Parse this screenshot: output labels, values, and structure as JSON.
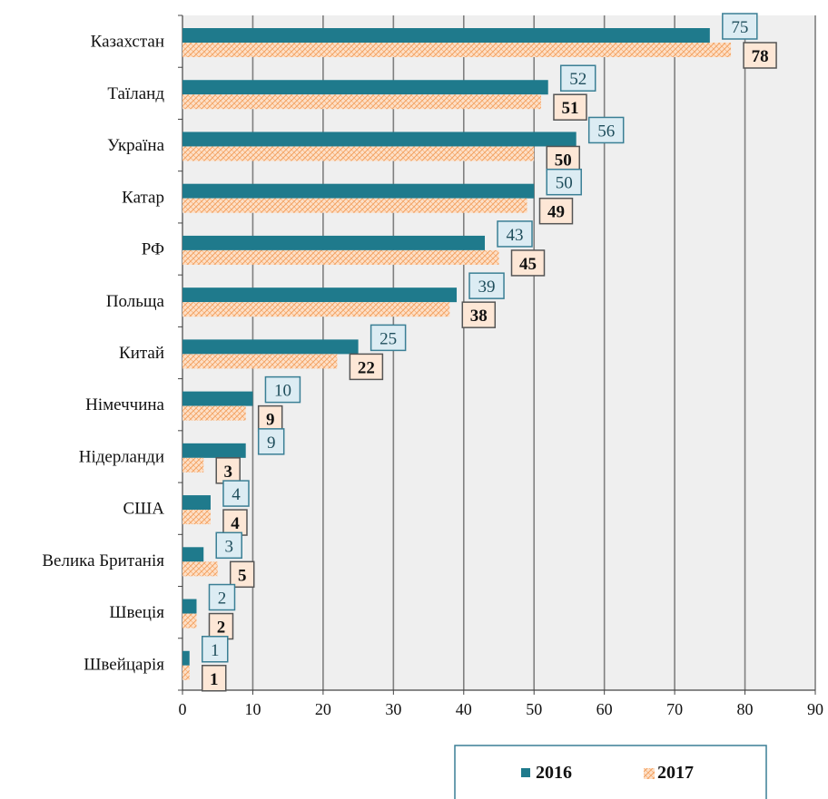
{
  "chart_data": {
    "type": "bar",
    "orientation": "horizontal",
    "categories": [
      "Казахстан",
      "Таїланд",
      "Україна",
      "Катар",
      "РФ",
      "Польща",
      "Китай",
      "Німеччина",
      "Нідерланди",
      "США",
      "Велика Британія",
      "Швеція",
      "Швейцарія"
    ],
    "series": [
      {
        "name": "2016",
        "values": [
          75,
          52,
          56,
          50,
          43,
          39,
          25,
          10,
          9,
          4,
          3,
          2,
          1
        ]
      },
      {
        "name": "2017",
        "values": [
          78,
          51,
          50,
          49,
          45,
          38,
          22,
          9,
          3,
          4,
          5,
          2,
          1
        ]
      }
    ],
    "xlim": [
      0,
      90
    ],
    "x_ticks": [
      "0",
      "10",
      "20",
      "30",
      "40",
      "50",
      "60",
      "70",
      "80",
      "90"
    ],
    "grid": true,
    "legend_position": "bottom",
    "colors": {
      "s2016": "#1f7a8c",
      "s2017_fill": "#fde0c8",
      "s2017_hatch": "#f4a261",
      "plot_bg": "#efefef",
      "grid": "#7f7f7f",
      "label2016_bg": "#dcecf3",
      "label2016_border": "#3a7f95",
      "label2017_bg": "#fde7d6",
      "label2017_border": "#555555"
    }
  }
}
